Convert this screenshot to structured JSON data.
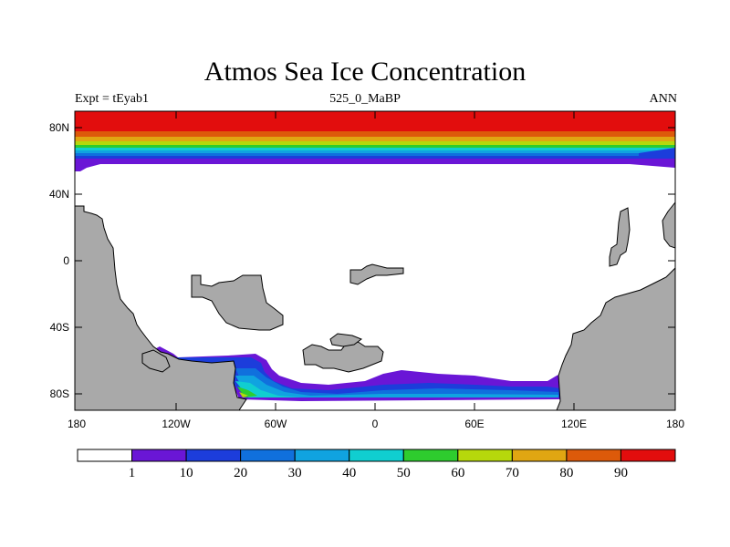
{
  "title": "Atmos Sea Ice Concentration",
  "expt_label": "Expt = tEyab1",
  "period_label": "525_0_MaBP",
  "season_label": "ANN",
  "lat_ticks": [
    "80N",
    "40N",
    "0",
    "40S",
    "80S"
  ],
  "lon_ticks": [
    "180",
    "120W",
    "60W",
    "0",
    "60E",
    "120E",
    "180"
  ],
  "colorbar": {
    "labels": [
      "1",
      "10",
      "20",
      "30",
      "40",
      "50",
      "60",
      "70",
      "80",
      "90"
    ],
    "colors": [
      "#ffffff",
      "#6a16d6",
      "#1c3ddb",
      "#1070dd",
      "#10a3e0",
      "#10ced0",
      "#2ecc2e",
      "#b6d80c",
      "#e0a612",
      "#dd5a0a",
      "#e20d0d"
    ]
  },
  "colors": {
    "land": "#a9a9a9",
    "ocean": "#ffffff"
  }
}
